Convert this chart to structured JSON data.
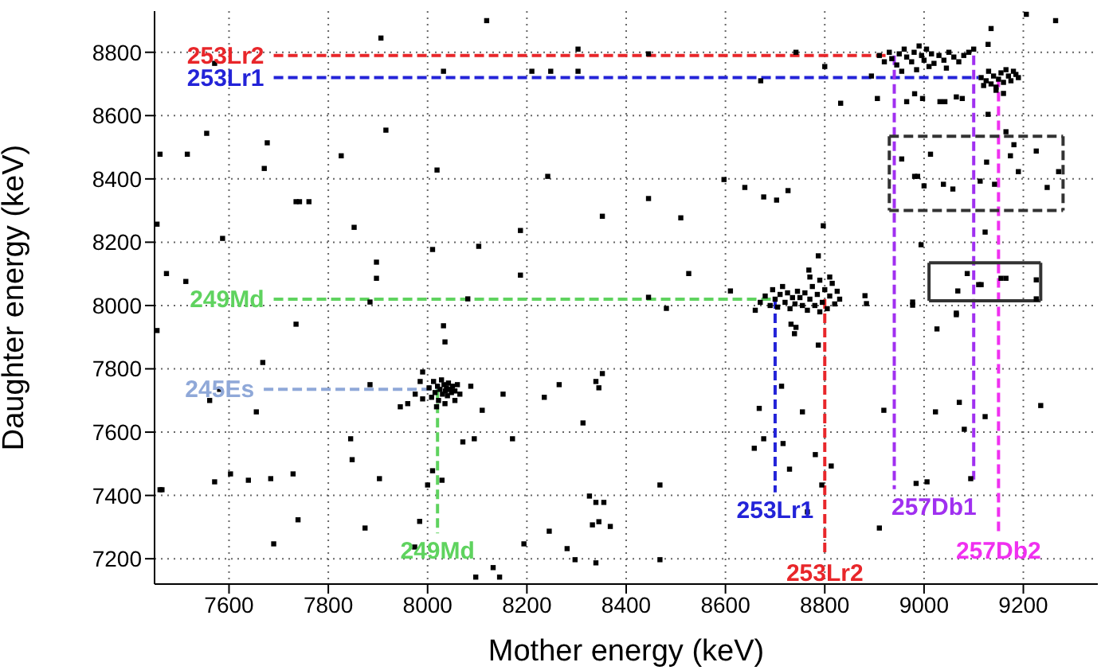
{
  "chart_data": {
    "type": "scatter",
    "xlabel": "Mother energy (keV)",
    "ylabel": "Daughter energy (keV)",
    "xlim": [
      7450,
      9350
    ],
    "ylim": [
      7120,
      8930
    ],
    "xticks": [
      7600,
      7800,
      8000,
      8200,
      8400,
      8600,
      8800,
      9000,
      9200
    ],
    "yticks": [
      7200,
      7400,
      7600,
      7800,
      8000,
      8200,
      8400,
      8600,
      8800
    ],
    "grid": true,
    "marker": "square",
    "series": [
      {
        "color": "#000000",
        "x": [
          7906,
          7571,
          7555,
          7461,
          7516,
          7677,
          7671,
          7916,
          7826,
          7735,
          7742,
          7761,
          7852,
          7455,
          7587,
          7474,
          7513,
          7897,
          7897,
          7884,
          8019,
          8010,
          8103,
          8081,
          8187,
          8187,
          8242,
          8352,
          8032,
          8210,
          8248,
          8303,
          8303,
          8119,
          8445,
          8742,
          8671,
          8800,
          8832,
          8906,
          8894,
          9135,
          9129,
          9206,
          9265,
          8965,
          8981,
          8997,
          9032,
          9042,
          9065,
          9077,
          9129,
          9165,
          9181,
          9174,
          9226,
          9271,
          9248,
          9190,
          9126,
          9142,
          9113,
          9013,
          8955,
          8981,
          8987,
          9000,
          9039,
          9058,
          9123,
          8994,
          8597,
          8639,
          8677,
          8703,
          8726,
          8445,
          8510,
          8526,
          8797,
          8787,
          8768,
          8610,
          8481,
          8445,
          9087,
          9068,
          9110,
          9115,
          9155,
          9165,
          9226,
          9226,
          8881,
          8884,
          8977,
          8977,
          9065,
          7735,
          7455,
          7668,
          7581,
          7561,
          7655,
          7884,
          8032,
          8035,
          8087,
          8110,
          8152,
          8071,
          8094,
          8171,
          8235,
          8265,
          8339,
          8352,
          8345,
          8313,
          7845,
          7848,
          7903,
          8010,
          8000,
          8029,
          7984,
          7974,
          7874,
          7739,
          7729,
          7684,
          7639,
          7603,
          7571,
          7461,
          7465,
          7690,
          8132,
          8097,
          8145,
          8194,
          8245,
          8281,
          8297,
          8339,
          8326,
          8339,
          8355,
          8332,
          8345,
          8368,
          8732,
          8742,
          8739,
          8787,
          9026,
          9065,
          8713,
          8668,
          8755,
          8919,
          9023,
          9071,
          9123,
          9081,
          9235,
          8677,
          8658,
          8716,
          8781,
          8813,
          8729,
          8794,
          8468,
          8984,
          9006,
          9094,
          8765,
          8910,
          8468,
          8910,
          8920,
          8930,
          8935,
          8945,
          8950,
          8960,
          8965,
          8975,
          8980,
          8990,
          8995,
          9000,
          9005,
          9015,
          9020,
          9030,
          9040,
          9050,
          9060,
          9070,
          9080,
          9090,
          9100,
          8955,
          8985,
          9010,
          9045,
          9115,
          9125,
          9130,
          9135,
          9140,
          9145,
          9150,
          9155,
          9160,
          9165,
          9170,
          9175,
          9180,
          9185,
          9145,
          9160,
          9120,
          9190,
          8670,
          8680,
          8690,
          8695,
          8700,
          8705,
          8710,
          8715,
          8720,
          8725,
          8730,
          8735,
          8740,
          8745,
          8660,
          8755,
          8760,
          8765,
          8770,
          8775,
          8780,
          8785,
          8790,
          8795,
          8800,
          8805,
          8810,
          8815,
          8820,
          8825,
          8830,
          8790,
          8770,
          8810,
          8750,
          8003,
          8008,
          8012,
          8015,
          8020,
          8022,
          8025,
          8028,
          8030,
          8033,
          8036,
          8038,
          8040,
          8042,
          8045,
          8048,
          8050,
          8055,
          8060,
          8065,
          8018,
          8035,
          8055,
          7990,
          7975,
          7960,
          7945,
          7985,
          7990
        ],
        "values": [
          8845,
          8765,
          8544,
          8478,
          8478,
          8514,
          8433,
          8554,
          8473,
          8328,
          8328,
          8328,
          8247,
          8257,
          8212,
          8101,
          8076,
          8137,
          8086,
          8011,
          8428,
          8177,
          8187,
          8021,
          8237,
          8096,
          8408,
          8282,
          8740,
          8740,
          8740,
          8740,
          8810,
          8900,
          8795,
          8800,
          8710,
          8755,
          8639,
          8654,
          8725,
          8875,
          8825,
          8920,
          8900,
          8644,
          8669,
          8654,
          8644,
          8644,
          8659,
          8654,
          8604,
          8549,
          8508,
          8473,
          8488,
          8423,
          8373,
          8423,
          8453,
          8383,
          8393,
          8478,
          8463,
          8408,
          8408,
          8378,
          8383,
          8368,
          8232,
          8192,
          8398,
          8373,
          8343,
          8333,
          8363,
          8338,
          8277,
          8101,
          8252,
          8157,
          8112,
          8046,
          7991,
          8026,
          8101,
          8046,
          8066,
          8066,
          8086,
          8086,
          8081,
          8021,
          8031,
          8006,
          8011,
          8001,
          7971,
          7941,
          7921,
          7820,
          7735,
          7700,
          7664,
          7750,
          7936,
          7885,
          7745,
          7669,
          7720,
          7569,
          7579,
          7579,
          7710,
          7750,
          7760,
          7785,
          7740,
          7629,
          7579,
          7513,
          7453,
          7478,
          7433,
          7448,
          7318,
          7237,
          7297,
          7323,
          7468,
          7453,
          7448,
          7468,
          7443,
          7418,
          7418,
          7247,
          7172,
          7142,
          7142,
          7247,
          7287,
          7232,
          7197,
          7187,
          7398,
          7378,
          7378,
          7307,
          7317,
          7302,
          7941,
          7931,
          7911,
          7875,
          7926,
          7976,
          7745,
          7675,
          7664,
          7669,
          7664,
          7694,
          7649,
          7609,
          7684,
          7579,
          7549,
          7564,
          7529,
          7493,
          7483,
          7433,
          7433,
          7438,
          7443,
          7453,
          7348,
          7297,
          7197,
          8790,
          8770,
          8800,
          8780,
          8760,
          8795,
          8810,
          8785,
          8770,
          8800,
          8820,
          8790,
          8775,
          8810,
          8795,
          8765,
          8790,
          8775,
          8800,
          8785,
          8770,
          8790,
          8800,
          8810,
          8740,
          8745,
          8755,
          8750,
          8720,
          8710,
          8740,
          8700,
          8725,
          8690,
          8715,
          8735,
          8705,
          8745,
          8725,
          8710,
          8740,
          8730,
          8680,
          8670,
          8695,
          8720,
          8010,
          8030,
          8000,
          8050,
          8020,
          7995,
          8035,
          8060,
          8010,
          8040,
          7990,
          8025,
          8005,
          8045,
          7985,
          8000,
          8040,
          7985,
          8020,
          8060,
          8000,
          8035,
          8080,
          8010,
          8050,
          7990,
          8030,
          8070,
          8005,
          8045,
          8020,
          7980,
          8090,
          8090,
          8025,
          7740,
          7710,
          7760,
          7725,
          7745,
          7700,
          7735,
          7765,
          7720,
          7750,
          7730,
          7740,
          7715,
          7755,
          7735,
          7725,
          7745,
          7730,
          7750,
          7720,
          7680,
          7690,
          7700,
          7705,
          7720,
          7690,
          7680,
          7760,
          7790
        ]
      },
      {
        "type": "line",
        "name": "253Lr2",
        "color": "#e8262a",
        "line_style": "dashed",
        "marker": "none",
        "x": [
          7690,
          8930
        ],
        "values": [
          8790,
          8790
        ]
      },
      {
        "type": "line",
        "name": "253Lr1",
        "color": "#2323d8",
        "line_style": "dashed",
        "marker": "none",
        "x": [
          7690,
          9110
        ],
        "values": [
          8720,
          8720
        ]
      },
      {
        "type": "line",
        "name": "249Md",
        "color": "#5fd35f",
        "line_style": "dashed",
        "marker": "none",
        "x": [
          7690,
          8700
        ],
        "values": [
          8020,
          8020
        ]
      },
      {
        "type": "line",
        "name": "245Es",
        "color": "#8fa8d8",
        "line_style": "dashed",
        "marker": "none",
        "x": [
          7670,
          8020
        ],
        "values": [
          7735,
          7735
        ]
      },
      {
        "type": "line",
        "name": "249Md",
        "color": "#5fd35f",
        "line_style": "dashed",
        "marker": "none",
        "x": [
          8020,
          8020
        ],
        "values": [
          7735,
          7280
        ]
      },
      {
        "type": "line",
        "name": "253Lr1",
        "color": "#2323d8",
        "line_style": "dashed",
        "marker": "none",
        "x": [
          8700,
          8700
        ],
        "values": [
          8020,
          7410
        ]
      },
      {
        "type": "line",
        "name": "253Lr2",
        "color": "#e8262a",
        "line_style": "dashed",
        "marker": "none",
        "x": [
          8800,
          8800
        ],
        "values": [
          8020,
          7210
        ]
      },
      {
        "type": "line",
        "name": "257Db1",
        "color": "#a030f0",
        "line_style": "dashed",
        "marker": "none",
        "x": [
          8940,
          8940,
          9020,
          9100,
          9100
        ],
        "values": [
          8790,
          7420,
          null,
          8790,
          7450
        ]
      },
      {
        "type": "line",
        "name": "257Db2",
        "color": "#f030f0",
        "line_style": "dashed",
        "marker": "none",
        "x": [
          9150,
          9150
        ],
        "values": [
          8720,
          7280
        ]
      },
      {
        "type": "line",
        "color": "#333333",
        "line_style": "dashed",
        "marker": "none",
        "x": [
          8930,
          9280
        ],
        "values": [
          8535,
          8535
        ]
      },
      {
        "type": "line",
        "color": "#333333",
        "line_style": "dashed",
        "marker": "none",
        "x": [
          8930,
          9280
        ],
        "values": [
          8300,
          8300
        ]
      },
      {
        "type": "line",
        "color": "#333333",
        "line_style": "dashed",
        "marker": "none",
        "x": [
          8930,
          8930
        ],
        "values": [
          8535,
          8300
        ]
      },
      {
        "type": "line",
        "color": "#333333",
        "line_style": "dashed",
        "marker": "none",
        "x": [
          9280,
          9280
        ],
        "values": [
          8535,
          8300
        ]
      },
      {
        "type": "line",
        "color": "#333333",
        "line_style": "solid",
        "marker": "none",
        "x": [
          9010,
          9235
        ],
        "values": [
          8135,
          8135
        ]
      },
      {
        "type": "line",
        "color": "#333333",
        "line_style": "solid",
        "marker": "none",
        "x": [
          9010,
          9235
        ],
        "values": [
          8015,
          8015
        ]
      },
      {
        "type": "line",
        "color": "#333333",
        "line_style": "solid",
        "marker": "none",
        "x": [
          9010,
          9010
        ],
        "values": [
          8135,
          8015
        ]
      },
      {
        "type": "line",
        "color": "#333333",
        "line_style": "solid",
        "marker": "none",
        "x": [
          9235,
          9235
        ],
        "values": [
          8135,
          8015
        ]
      }
    ]
  }
}
